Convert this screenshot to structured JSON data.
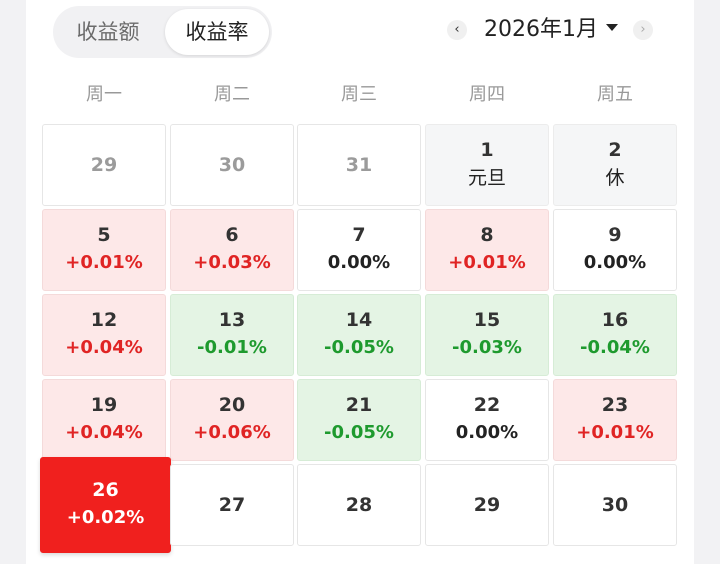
{
  "toggle": [
    "收益额",
    "收益率"
  ],
  "month_label": "2026年1月",
  "weekdays": [
    "周一",
    "周二",
    "周三",
    "周四",
    "周五"
  ],
  "calendar": [
    {
      "day": "29",
      "value": "",
      "kind": "other"
    },
    {
      "day": "30",
      "value": "",
      "kind": "other"
    },
    {
      "day": "31",
      "value": "",
      "kind": "other"
    },
    {
      "day": "1",
      "value": "元旦",
      "kind": "hol"
    },
    {
      "day": "2",
      "value": "休",
      "kind": "hol"
    },
    {
      "day": "5",
      "value": "+0.01%",
      "kind": "up"
    },
    {
      "day": "6",
      "value": "+0.03%",
      "kind": "up"
    },
    {
      "day": "7",
      "value": "0.00%",
      "kind": "zero"
    },
    {
      "day": "8",
      "value": "+0.01%",
      "kind": "up"
    },
    {
      "day": "9",
      "value": "0.00%",
      "kind": "zero"
    },
    {
      "day": "12",
      "value": "+0.04%",
      "kind": "up"
    },
    {
      "day": "13",
      "value": "-0.01%",
      "kind": "down"
    },
    {
      "day": "14",
      "value": "-0.05%",
      "kind": "down"
    },
    {
      "day": "15",
      "value": "-0.03%",
      "kind": "down"
    },
    {
      "day": "16",
      "value": "-0.04%",
      "kind": "down"
    },
    {
      "day": "19",
      "value": "+0.04%",
      "kind": "up"
    },
    {
      "day": "20",
      "value": "+0.06%",
      "kind": "up"
    },
    {
      "day": "21",
      "value": "-0.05%",
      "kind": "down"
    },
    {
      "day": "22",
      "value": "0.00%",
      "kind": "zero"
    },
    {
      "day": "23",
      "value": "+0.01%",
      "kind": "up"
    },
    {
      "day": "26",
      "value": "+0.02%",
      "kind": "active"
    },
    {
      "day": "27",
      "value": "",
      "kind": "future"
    },
    {
      "day": "28",
      "value": "",
      "kind": "future"
    },
    {
      "day": "29",
      "value": "",
      "kind": "future"
    },
    {
      "day": "30",
      "value": "",
      "kind": "future"
    }
  ],
  "icons": {
    "prev": "chevron-left-icon",
    "next": "chevron-right-icon",
    "dropdown": "caret-down-icon"
  },
  "colors": {
    "gain": "#e02424",
    "loss": "#1e9a2e",
    "selected": "#f0201e"
  }
}
